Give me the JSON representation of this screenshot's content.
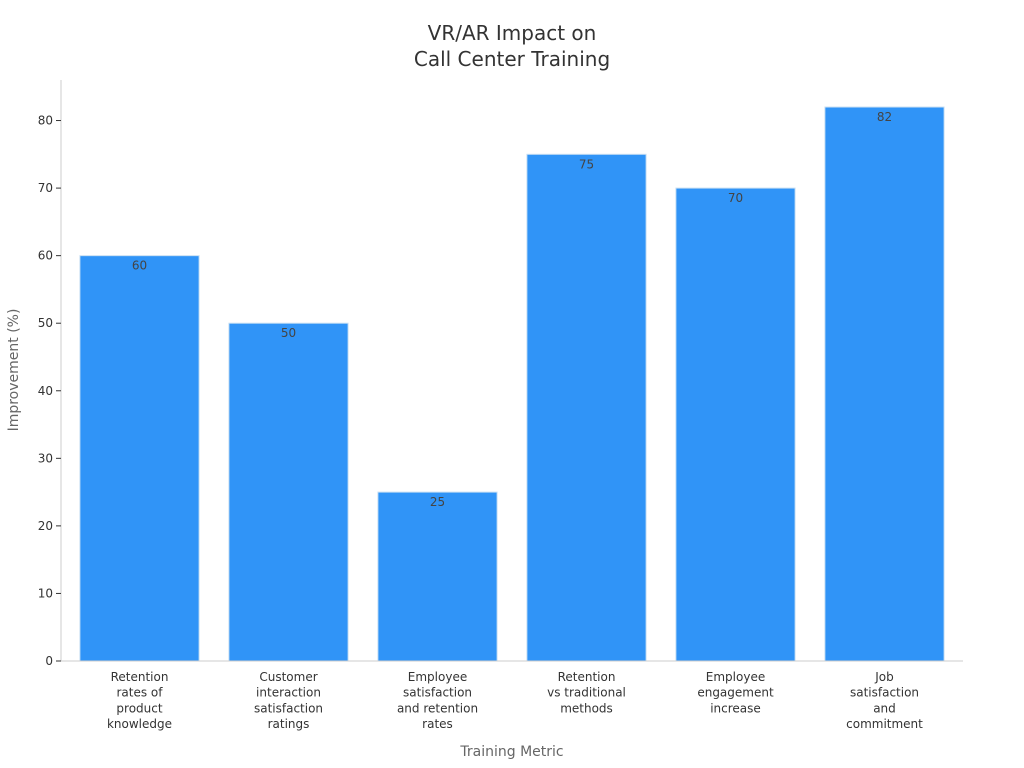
{
  "chart_data": {
    "type": "bar",
    "title": "VR/AR Impact on\nCall Center Training",
    "xlabel": "Training Metric",
    "ylabel": "Improvement (%)",
    "categories": [
      "Retention\nrates of\nproduct\nknowledge",
      "Customer\ninteraction\nsatisfaction\nratings",
      "Employee\nsatisfaction\nand retention\nrates",
      "Retention\nvs traditional\nmethods",
      "Employee\nengagement\nincrease",
      "Job\nsatisfaction\nand\ncommitment"
    ],
    "values": [
      60,
      50,
      25,
      75,
      70,
      82
    ],
    "data_labels": [
      "60",
      "50",
      "25",
      "75",
      "70",
      "82"
    ],
    "ylim": [
      0,
      86
    ],
    "yticks": [
      0,
      10,
      20,
      30,
      40,
      50,
      60,
      70,
      80
    ],
    "grid": false,
    "legend": "none",
    "colors": {
      "bar": "#3094f7",
      "bar_edge": "#c9dff3",
      "axis": "#cccccc",
      "text": "#333333",
      "axis_title": "#666666"
    }
  }
}
